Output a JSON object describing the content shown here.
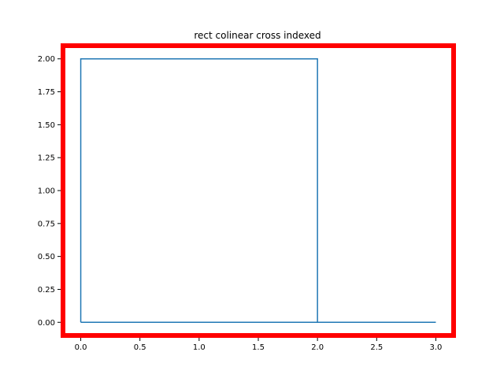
{
  "chart_data": {
    "type": "line",
    "title": "rect colinear cross indexed",
    "xlabel": "",
    "ylabel": "",
    "xlim": [
      -0.15,
      3.15
    ],
    "ylim": [
      -0.1,
      2.1
    ],
    "xticks": [
      "0.0",
      "0.5",
      "1.0",
      "1.5",
      "2.0",
      "2.5",
      "3.0"
    ],
    "yticks": [
      "0.00",
      "0.25",
      "0.50",
      "0.75",
      "1.00",
      "1.25",
      "1.50",
      "1.75",
      "2.00"
    ],
    "grid": false,
    "series": [
      {
        "color": "#1f77b4",
        "x": [
          0,
          0,
          2,
          2,
          0,
          2,
          3
        ],
        "y": [
          0,
          2,
          2,
          0,
          0,
          0,
          0
        ]
      }
    ],
    "frame_color": "#ff0000"
  }
}
